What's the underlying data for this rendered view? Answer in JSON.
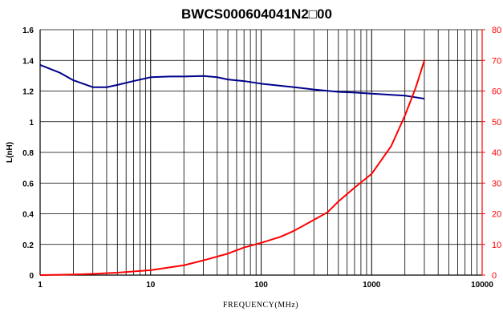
{
  "chart_data": {
    "type": "line",
    "title": "BWCS000604041N2□00",
    "xlabel": "FREQUENCY(MHz)",
    "ylabel": "L(nH)",
    "xscale": "log",
    "xlim": [
      1,
      10000
    ],
    "ylim": [
      0,
      1.6
    ],
    "y2lim": [
      0,
      80
    ],
    "grid": true,
    "legend": "none",
    "x_tick_labels": [
      "1",
      "10",
      "100",
      "1000",
      "10000"
    ],
    "y_tick_labels": [
      "0",
      "0.2",
      "0.4",
      "0.6",
      "0.8",
      "1",
      "1.2",
      "1.4",
      "1.6"
    ],
    "y2_tick_labels": [
      "0",
      "10",
      "20",
      "30",
      "40",
      "50",
      "60",
      "70",
      "80"
    ],
    "series": [
      {
        "axis": "left",
        "color": "#00008b",
        "x": [
          1,
          1.5,
          2,
          3,
          4,
          5,
          7,
          10,
          15,
          20,
          30,
          40,
          50,
          70,
          100,
          200,
          300,
          500,
          700,
          1000,
          2000,
          3000
        ],
        "y": [
          1.37,
          1.32,
          1.27,
          1.225,
          1.225,
          1.24,
          1.265,
          1.29,
          1.295,
          1.295,
          1.298,
          1.29,
          1.275,
          1.265,
          1.248,
          1.225,
          1.21,
          1.195,
          1.19,
          1.183,
          1.17,
          1.15
        ]
      },
      {
        "axis": "right",
        "color": "#ff0000",
        "x": [
          1,
          2,
          3,
          5,
          10,
          20,
          30,
          50,
          70,
          100,
          150,
          200,
          300,
          400,
          500,
          700,
          1000,
          1500,
          2000,
          2500,
          3000
        ],
        "y": [
          0,
          0.2,
          0.4,
          0.8,
          1.6,
          3.2,
          4.8,
          7,
          9,
          10.5,
          12.5,
          14.5,
          18,
          20.5,
          24,
          28.5,
          33,
          42,
          52,
          61,
          70
        ]
      }
    ]
  }
}
